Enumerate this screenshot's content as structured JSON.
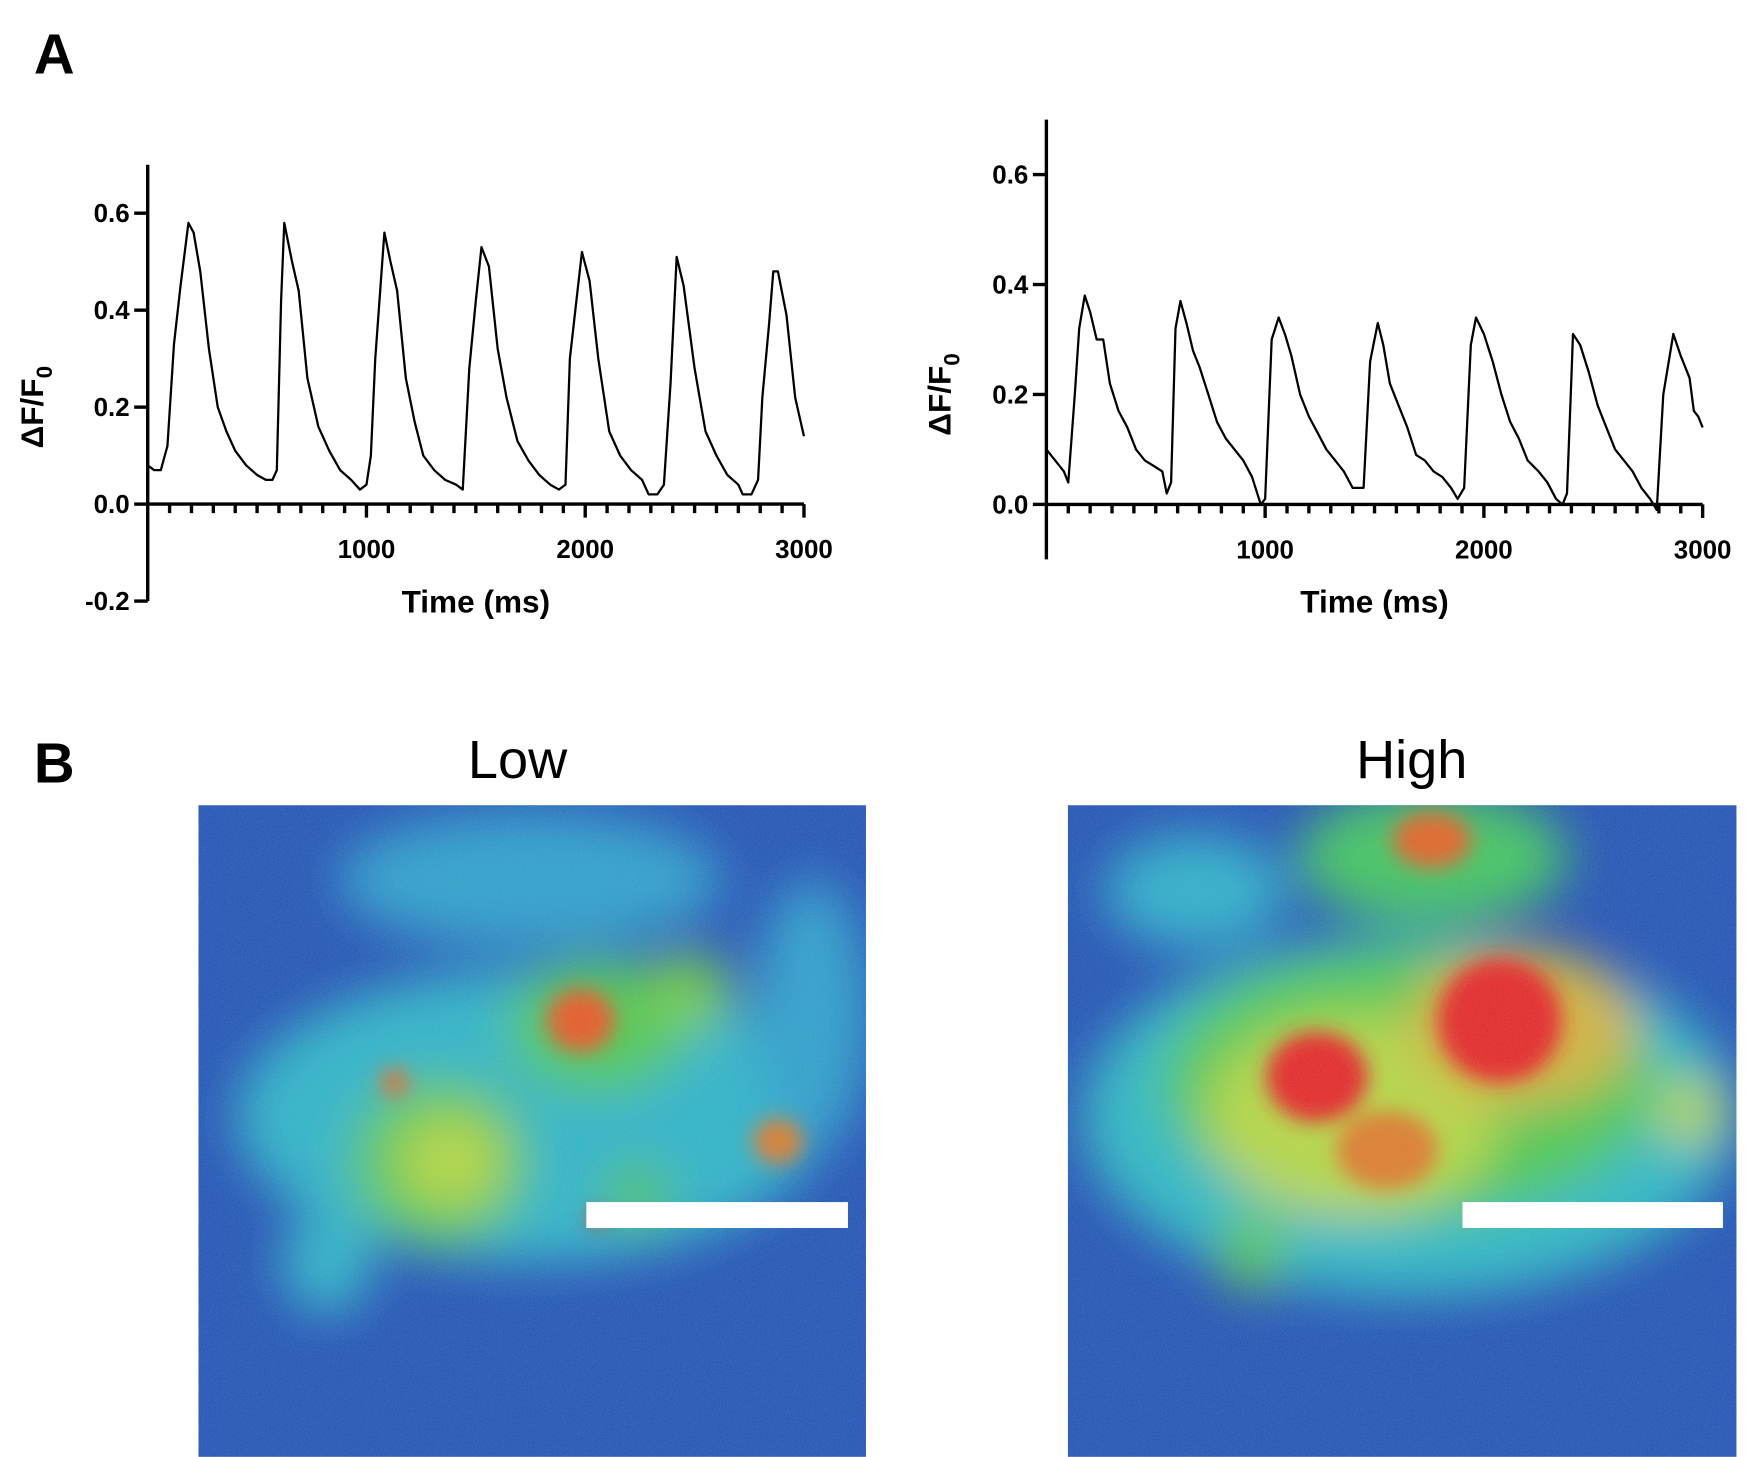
{
  "panel_labels": [
    "A",
    "B"
  ],
  "images": [
    {
      "title": "Low"
    },
    {
      "title": "High"
    }
  ],
  "chart_data": [
    {
      "type": "line",
      "xlabel": "Time (ms)",
      "ylabel": "ΔF/F",
      "ylabel_subscript": "0",
      "xlim": [
        0,
        3000
      ],
      "ylim": [
        -0.2,
        0.7
      ],
      "xticks": [
        1000,
        2000,
        3000
      ],
      "xminorticks": [
        100,
        200,
        300,
        400,
        500,
        600,
        700,
        800,
        900,
        1100,
        1200,
        1300,
        1400,
        1500,
        1600,
        1700,
        1800,
        1900,
        2100,
        2200,
        2300,
        2400,
        2500,
        2600,
        2700,
        2800,
        2900
      ],
      "yticks": [
        -0.2,
        {
          "value": 0,
          "label": "0.0"
        },
        0.2,
        0.4,
        0.6
      ],
      "x": [
        0,
        30,
        60,
        90,
        120,
        150,
        186,
        210,
        240,
        280,
        320,
        360,
        400,
        450,
        500,
        540,
        570,
        590,
        610,
        624,
        660,
        690,
        730,
        780,
        830,
        880,
        930,
        970,
        1000,
        1020,
        1040,
        1082,
        1110,
        1140,
        1180,
        1220,
        1260,
        1310,
        1360,
        1410,
        1440,
        1470,
        1500,
        1526,
        1560,
        1600,
        1640,
        1690,
        1740,
        1790,
        1840,
        1880,
        1910,
        1930,
        1960,
        1985,
        2020,
        2060,
        2110,
        2160,
        2210,
        2260,
        2290,
        2330,
        2360,
        2390,
        2418,
        2450,
        2500,
        2550,
        2600,
        2650,
        2700,
        2720,
        2760,
        2790,
        2810,
        2840,
        2860,
        2881,
        2920,
        2960,
        3000
      ],
      "series": [
        {
          "color": "#000000",
          "values": [
            0.08,
            0.07,
            0.07,
            0.12,
            0.33,
            0.45,
            0.58,
            0.56,
            0.48,
            0.32,
            0.2,
            0.15,
            0.11,
            0.08,
            0.06,
            0.05,
            0.05,
            0.07,
            0.42,
            0.58,
            0.5,
            0.44,
            0.26,
            0.16,
            0.11,
            0.07,
            0.05,
            0.03,
            0.04,
            0.1,
            0.3,
            0.56,
            0.5,
            0.44,
            0.26,
            0.17,
            0.1,
            0.07,
            0.05,
            0.04,
            0.03,
            0.28,
            0.42,
            0.53,
            0.49,
            0.32,
            0.22,
            0.13,
            0.09,
            0.06,
            0.04,
            0.03,
            0.04,
            0.3,
            0.42,
            0.52,
            0.46,
            0.3,
            0.15,
            0.1,
            0.07,
            0.05,
            0.02,
            0.02,
            0.04,
            0.25,
            0.51,
            0.45,
            0.28,
            0.15,
            0.1,
            0.06,
            0.04,
            0.02,
            0.02,
            0.05,
            0.22,
            0.37,
            0.48,
            0.48,
            0.39,
            0.22,
            0.14
          ]
        }
      ]
    },
    {
      "type": "line",
      "xlabel": "Time (ms)",
      "ylabel": "ΔF/F",
      "ylabel_subscript": "0",
      "xlim": [
        0,
        3000
      ],
      "ylim": [
        -0.1,
        0.7
      ],
      "xticks": [
        1000,
        2000,
        3000
      ],
      "xminorticks": [
        100,
        200,
        300,
        400,
        500,
        600,
        700,
        800,
        900,
        1100,
        1200,
        1300,
        1400,
        1500,
        1600,
        1700,
        1800,
        1900,
        2100,
        2200,
        2300,
        2400,
        2500,
        2600,
        2700,
        2800,
        2900
      ],
      "yticks": [
        {
          "value": 0,
          "label": "0.0"
        },
        0.2,
        0.4,
        0.6
      ],
      "x": [
        0,
        40,
        80,
        100,
        130,
        150,
        175,
        200,
        230,
        260,
        290,
        330,
        370,
        410,
        450,
        490,
        530,
        550,
        570,
        590,
        613,
        640,
        670,
        700,
        740,
        780,
        820,
        860,
        900,
        940,
        980,
        1000,
        1030,
        1062,
        1090,
        1120,
        1160,
        1200,
        1240,
        1280,
        1320,
        1360,
        1400,
        1450,
        1480,
        1515,
        1540,
        1570,
        1610,
        1650,
        1690,
        1730,
        1770,
        1810,
        1850,
        1880,
        1910,
        1940,
        1964,
        2000,
        2040,
        2080,
        2120,
        2160,
        2200,
        2250,
        2290,
        2330,
        2360,
        2380,
        2400,
        2407,
        2440,
        2480,
        2520,
        2560,
        2600,
        2640,
        2680,
        2720,
        2760,
        2790,
        2820,
        2866,
        2900,
        2940,
        2960,
        2980,
        3000
      ],
      "series": [
        {
          "color": "#000000",
          "values": [
            0.1,
            0.08,
            0.06,
            0.04,
            0.2,
            0.32,
            0.38,
            0.35,
            0.3,
            0.3,
            0.22,
            0.17,
            0.14,
            0.1,
            0.08,
            0.07,
            0.06,
            0.02,
            0.04,
            0.32,
            0.37,
            0.33,
            0.28,
            0.25,
            0.2,
            0.15,
            0.12,
            0.1,
            0.08,
            0.05,
            0.0,
            0.01,
            0.3,
            0.34,
            0.31,
            0.27,
            0.2,
            0.16,
            0.13,
            0.1,
            0.08,
            0.06,
            0.03,
            0.03,
            0.26,
            0.33,
            0.29,
            0.22,
            0.18,
            0.14,
            0.09,
            0.08,
            0.06,
            0.05,
            0.03,
            0.01,
            0.03,
            0.29,
            0.34,
            0.31,
            0.26,
            0.2,
            0.15,
            0.12,
            0.08,
            0.06,
            0.04,
            0.01,
            0.0,
            0.02,
            0.23,
            0.31,
            0.29,
            0.24,
            0.18,
            0.14,
            0.1,
            0.08,
            0.06,
            0.03,
            0.01,
            -0.01,
            0.2,
            0.31,
            0.27,
            0.23,
            0.17,
            0.16,
            0.14
          ]
        }
      ]
    }
  ]
}
